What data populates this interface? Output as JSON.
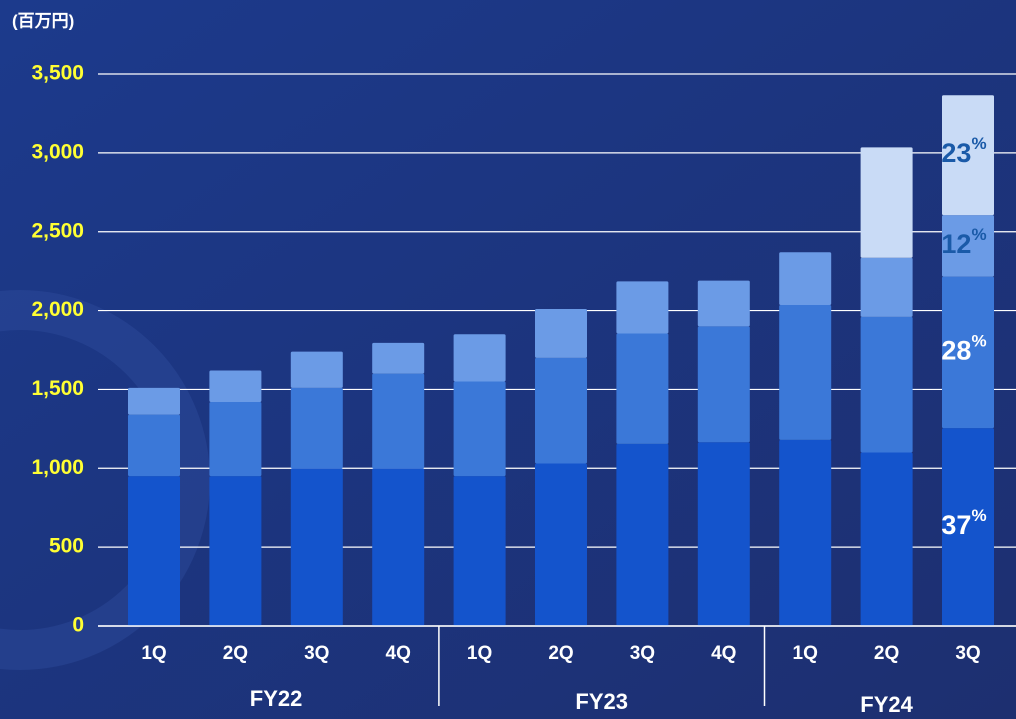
{
  "chart_data": {
    "type": "stacked-bar",
    "unit_label": "(百万円)",
    "groups": [
      {
        "name": "FY22",
        "categories": [
          "1Q",
          "2Q",
          "3Q",
          "4Q"
        ]
      },
      {
        "name": "FY23",
        "categories": [
          "1Q",
          "2Q",
          "3Q",
          "4Q"
        ]
      },
      {
        "name": "FY24",
        "categories": [
          "1Q",
          "2Q",
          "3Q"
        ]
      }
    ],
    "series": [
      {
        "color": "#1454cc",
        "values": [
          950,
          950,
          1000,
          1000,
          950,
          1030,
          1155,
          1165,
          1180,
          1100,
          1255
        ]
      },
      {
        "color": "#3b78d8",
        "values": [
          390,
          470,
          510,
          600,
          600,
          670,
          700,
          735,
          855,
          860,
          960
        ]
      },
      {
        "color": "#6b9be6",
        "values": [
          170,
          200,
          230,
          195,
          300,
          310,
          330,
          290,
          335,
          375,
          390
        ]
      },
      {
        "color": "#c9dbf6",
        "values": [
          null,
          null,
          null,
          null,
          null,
          null,
          null,
          null,
          null,
          700,
          760
        ]
      }
    ],
    "annotations": [
      {
        "label": "37",
        "sup": "%",
        "color": "#ffffff"
      },
      {
        "label": "28",
        "sup": "%",
        "color": "#ffffff"
      },
      {
        "label": "12",
        "sup": "%",
        "color": "#1a5aa8"
      },
      {
        "label": "23",
        "sup": "%",
        "color": "#1a5aa8"
      }
    ],
    "ylim": [
      0,
      3500
    ],
    "yticks": [
      0,
      500,
      {
        "value": 1000,
        "label": "1,000"
      },
      {
        "value": 1500,
        "label": "1,500"
      },
      {
        "value": 2000,
        "label": "2,000"
      },
      {
        "value": 2500,
        "label": "2,500"
      },
      {
        "value": 3000,
        "label": "3,000"
      },
      {
        "value": 3500,
        "label": "3,500"
      }
    ],
    "grid": true
  }
}
